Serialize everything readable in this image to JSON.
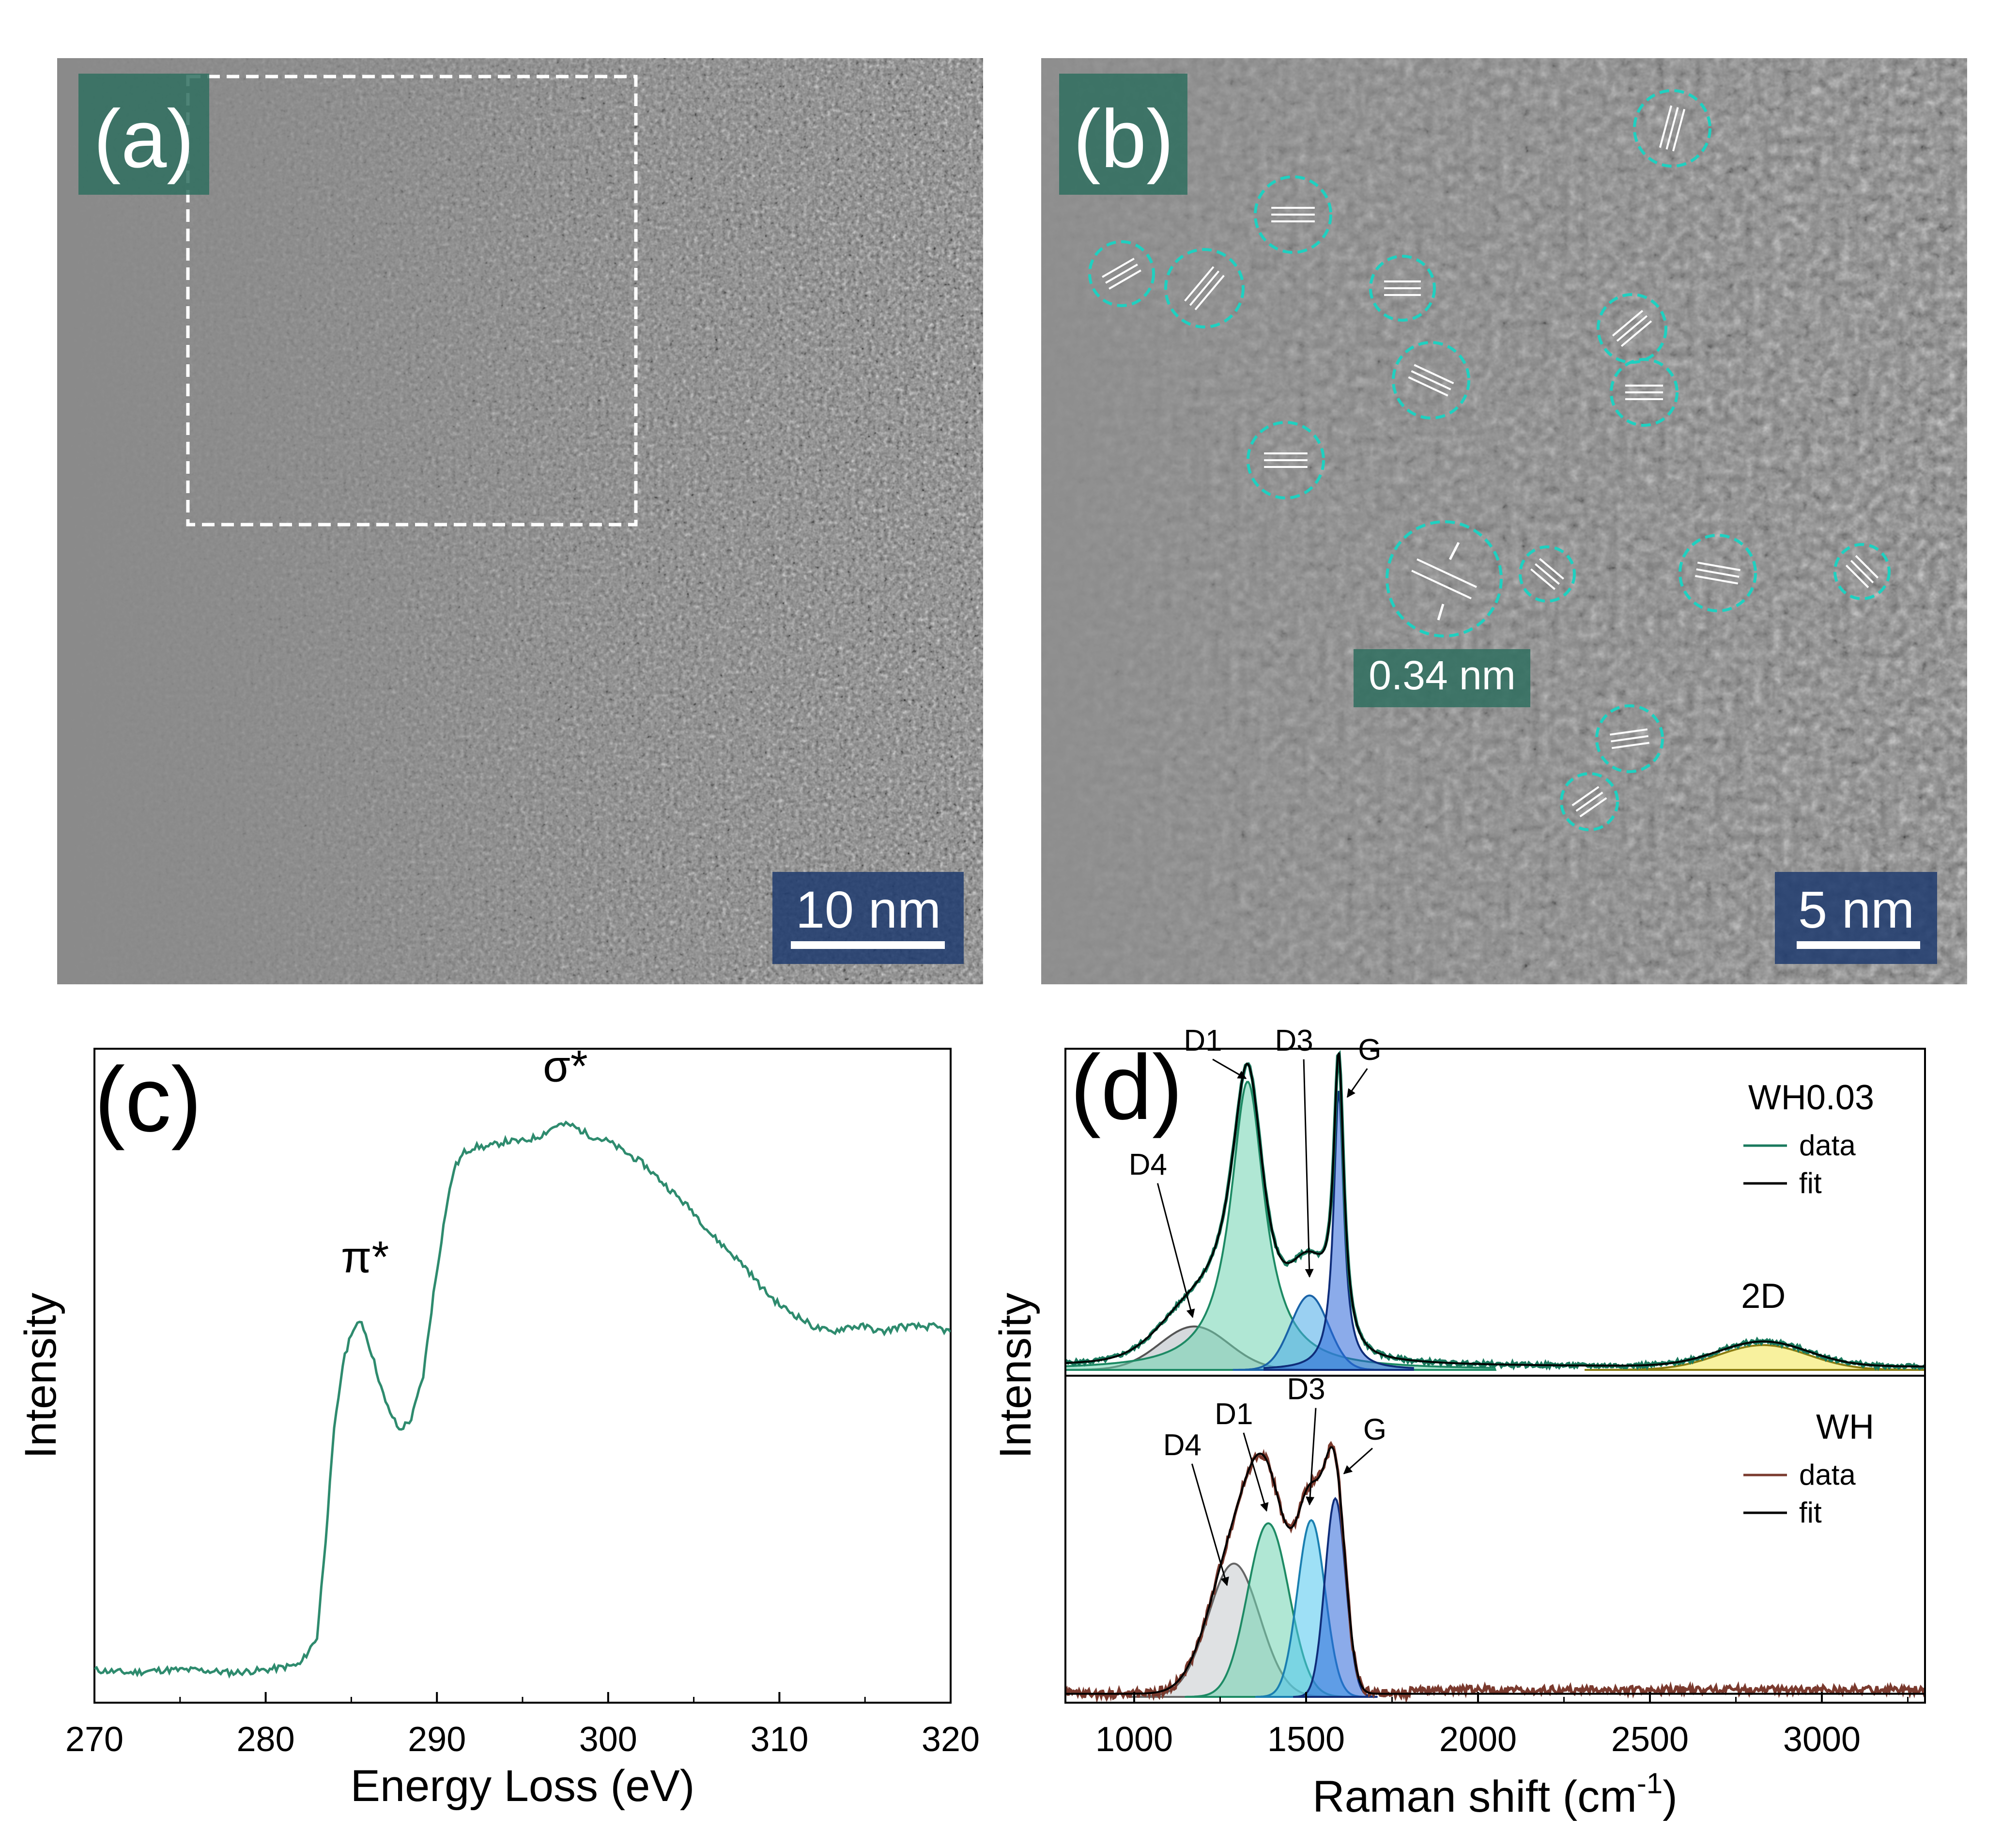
{
  "panel_a": {
    "label": "(a)",
    "scalebar": "10 nm"
  },
  "panel_b": {
    "label": "(b)",
    "scalebar": "5 nm",
    "lattice_spacing": "0.34 nm"
  },
  "chart_data": [
    {
      "id": "c",
      "type": "line",
      "panel_label": "(c)",
      "xlabel": "Energy Loss (eV)",
      "ylabel": "Intensity",
      "xlim": [
        270,
        320
      ],
      "ylim": [
        0,
        1.2
      ],
      "xticks": [
        270,
        280,
        290,
        300,
        310,
        320
      ],
      "grid": false,
      "color": "#2e8b6e",
      "annotations": [
        {
          "text": "π*",
          "x": 285.8,
          "y": 0.79
        },
        {
          "text": "σ*",
          "x": 297.5,
          "y": 1.14
        }
      ],
      "x": [
        270,
        272,
        274,
        276,
        278,
        280,
        282,
        283,
        283.5,
        284,
        284.5,
        285,
        285.6,
        286.2,
        287,
        287.8,
        288.5,
        289.2,
        289.8,
        290.5,
        291,
        291.6,
        292.2,
        293,
        294,
        295,
        296,
        297,
        297.8,
        299,
        300,
        301,
        302,
        303,
        304,
        305,
        306,
        307,
        308,
        309,
        310,
        311,
        312,
        313,
        314,
        315,
        316,
        317,
        318,
        319,
        320
      ],
      "y": [
        0.06,
        0.055,
        0.06,
        0.06,
        0.055,
        0.06,
        0.07,
        0.12,
        0.3,
        0.5,
        0.62,
        0.68,
        0.7,
        0.64,
        0.55,
        0.5,
        0.52,
        0.6,
        0.75,
        0.9,
        0.98,
        1.01,
        1.02,
        1.02,
        1.03,
        1.03,
        1.04,
        1.06,
        1.06,
        1.04,
        1.03,
        1.01,
        0.99,
        0.96,
        0.93,
        0.9,
        0.86,
        0.83,
        0.8,
        0.76,
        0.73,
        0.71,
        0.69,
        0.68,
        0.69,
        0.69,
        0.68,
        0.69,
        0.69,
        0.69,
        0.68
      ]
    },
    {
      "id": "d",
      "type": "line",
      "panel_label": "(d)",
      "xlabel": "Raman shift (cm",
      "xlabel_sup": "-1",
      "xlabel_end": ")",
      "ylabel": "Intensity",
      "xlim": [
        800,
        3300
      ],
      "xticks": [
        1000,
        1500,
        2000,
        2500,
        3000
      ],
      "grid": false,
      "subplots": [
        {
          "title": "WH0.03",
          "legend": [
            {
              "label": "data",
              "color": "#1a7a5e"
            },
            {
              "label": "fit",
              "color": "#000000"
            }
          ],
          "band_labels": [
            {
              "text": "D1",
              "x": 1200,
              "y": 1.03,
              "target_x": 1325,
              "target_y": 0.94
            },
            {
              "text": "D3",
              "x": 1465,
              "y": 1.03,
              "target_x": 1510,
              "target_y": 0.3
            },
            {
              "text": "G",
              "x": 1685,
              "y": 1.0,
              "target_x": 1620,
              "target_y": 0.88
            },
            {
              "text": "D4",
              "x": 1040,
              "y": 0.63,
              "target_x": 1170,
              "target_y": 0.17
            },
            {
              "text": "2D",
              "x": 2830,
              "y": 0.2,
              "target_x": null,
              "target_y": null
            }
          ],
          "peaks": [
            {
              "name": "D4",
              "center": 1175,
              "height": 0.14,
              "width": 100,
              "fill": "#b3b9bf",
              "stroke": "#555555",
              "shape": "gauss"
            },
            {
              "name": "D1",
              "center": 1330,
              "height": 0.93,
              "width": 60,
              "fill": "#6fd3b0",
              "stroke": "#1d8a64",
              "shape": "lorentz"
            },
            {
              "name": "D3",
              "center": 1510,
              "height": 0.24,
              "width": 55,
              "fill": "#47a9e8",
              "stroke": "#1a63a8",
              "shape": "gauss"
            },
            {
              "name": "G",
              "center": 1595,
              "height": 0.9,
              "width": 18,
              "fill": "#2b66d8",
              "stroke": "#0f2d7a",
              "shape": "lorentz"
            },
            {
              "name": "2D",
              "center": 2830,
              "height": 0.08,
              "width": 130,
              "fill": "#f2e64e",
              "stroke": "#8a7c10",
              "shape": "gauss"
            }
          ]
        },
        {
          "title": "WH",
          "legend": [
            {
              "label": "data",
              "color": "#7a3a2e"
            },
            {
              "label": "fit",
              "color": "#000000"
            }
          ],
          "band_labels": [
            {
              "text": "D4",
              "x": 1140,
              "y": 0.78,
              "target_x": 1270,
              "target_y": 0.36
            },
            {
              "text": "D1",
              "x": 1290,
              "y": 0.88,
              "target_x": 1385,
              "target_y": 0.6
            },
            {
              "text": "D3",
              "x": 1500,
              "y": 0.96,
              "target_x": 1510,
              "target_y": 0.62
            },
            {
              "text": "G",
              "x": 1700,
              "y": 0.83,
              "target_x": 1610,
              "target_y": 0.72
            }
          ],
          "peaks": [
            {
              "name": "D4",
              "center": 1290,
              "height": 0.43,
              "width": 75,
              "fill": "#c4c8cc",
              "stroke": "#666666",
              "shape": "gauss"
            },
            {
              "name": "D1",
              "center": 1390,
              "height": 0.56,
              "width": 60,
              "fill": "#6fd3b0",
              "stroke": "#1d8a64",
              "shape": "gauss"
            },
            {
              "name": "D3",
              "center": 1515,
              "height": 0.57,
              "width": 40,
              "fill": "#4fc7ef",
              "stroke": "#1a7fb0",
              "shape": "gauss"
            },
            {
              "name": "G",
              "center": 1585,
              "height": 0.64,
              "width": 30,
              "fill": "#2b66d8",
              "stroke": "#0f2d7a",
              "shape": "gauss"
            }
          ]
        }
      ]
    }
  ]
}
